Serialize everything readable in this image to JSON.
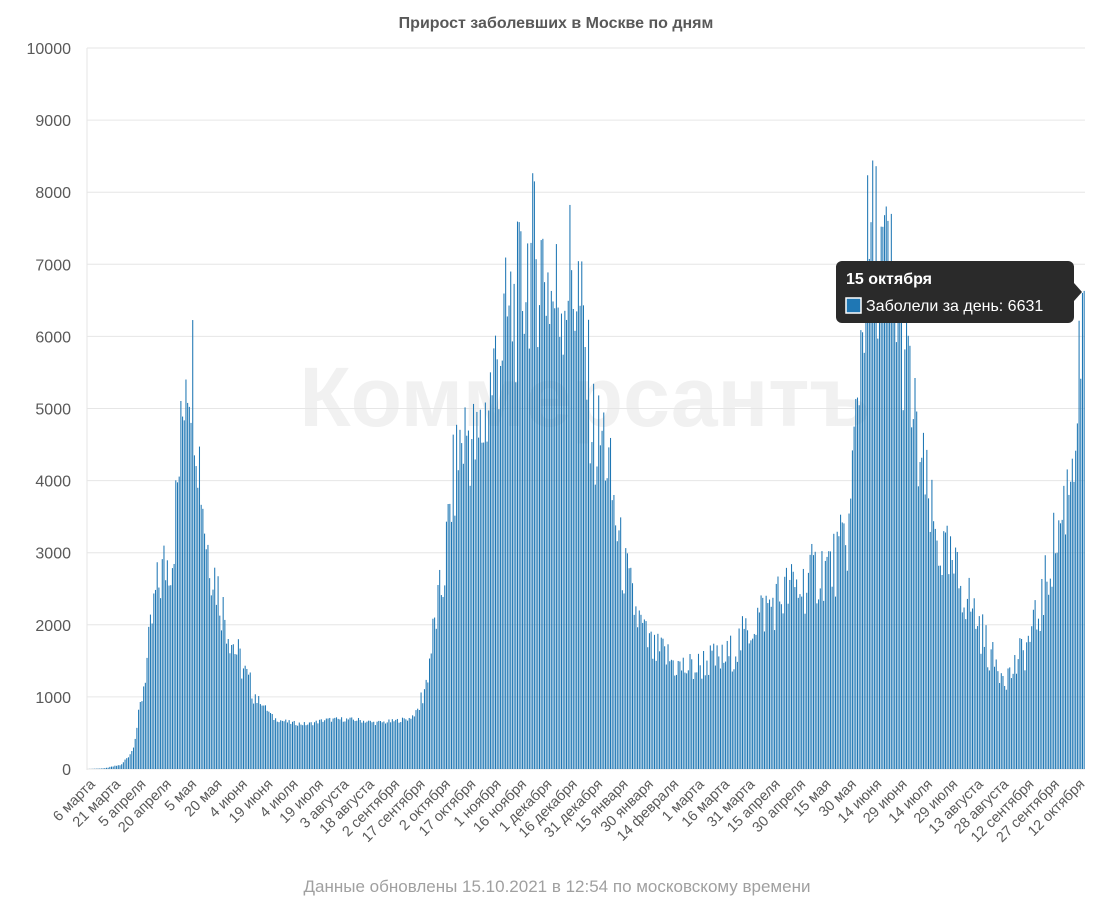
{
  "chart_data": {
    "type": "bar",
    "title": "Прирост заболевших в Москве по дням",
    "watermark": "Коммерсантъ",
    "footer": "Данные обновлены 15.10.2021 в 12:54 по московскому времени",
    "series": [
      {
        "name": "Заболели за день",
        "color": "#1f77b4"
      }
    ],
    "bar_color": "#1f77b4",
    "ylim": [
      0,
      10000
    ],
    "yticks": [
      0,
      1000,
      2000,
      3000,
      4000,
      5000,
      6000,
      7000,
      8000,
      9000,
      10000
    ],
    "grid": true,
    "x_tick_labels": [
      "6 марта",
      "21 марта",
      "5 апреля",
      "20 апреля",
      "5 мая",
      "20 мая",
      "4 июня",
      "19 июня",
      "4 июля",
      "19 июля",
      "3 августа",
      "18 августа",
      "2 сентября",
      "17 сентября",
      "2 октября",
      "17 октября",
      "1 ноября",
      "16 ноября",
      "1 декабря",
      "16 декабря",
      "31 декабря",
      "15 января",
      "30 января",
      "14 февраля",
      "1 марта",
      "16 марта",
      "31 марта",
      "15 апреля",
      "30 апреля",
      "15 мая",
      "30 мая",
      "14 июня",
      "29 июня",
      "14 июля",
      "29 июля",
      "13 августа",
      "28 августа",
      "12 сентября",
      "27 сентября",
      "12 октября"
    ],
    "start_date": "2020-03-06",
    "end_date": "2021-10-15",
    "trend_anchors": [
      [
        0,
        0
      ],
      [
        10,
        10
      ],
      [
        20,
        60
      ],
      [
        26,
        250
      ],
      [
        30,
        700
      ],
      [
        35,
        1500
      ],
      [
        40,
        2400
      ],
      [
        45,
        2800
      ],
      [
        50,
        3000
      ],
      [
        55,
        4500
      ],
      [
        58,
        5800
      ],
      [
        62,
        5600
      ],
      [
        65,
        4600
      ],
      [
        70,
        3200
      ],
      [
        75,
        2700
      ],
      [
        80,
        2200
      ],
      [
        85,
        1800
      ],
      [
        90,
        1500
      ],
      [
        95,
        1200
      ],
      [
        100,
        1000
      ],
      [
        110,
        700
      ],
      [
        120,
        640
      ],
      [
        130,
        620
      ],
      [
        140,
        680
      ],
      [
        150,
        690
      ],
      [
        160,
        680
      ],
      [
        170,
        640
      ],
      [
        180,
        660
      ],
      [
        190,
        700
      ],
      [
        195,
        800
      ],
      [
        200,
        1200
      ],
      [
        205,
        2000
      ],
      [
        210,
        2600
      ],
      [
        215,
        3800
      ],
      [
        220,
        4500
      ],
      [
        225,
        4700
      ],
      [
        230,
        4400
      ],
      [
        235,
        4900
      ],
      [
        240,
        5500
      ],
      [
        245,
        6000
      ],
      [
        250,
        6300
      ],
      [
        255,
        6500
      ],
      [
        260,
        7000
      ],
      [
        265,
        7100
      ],
      [
        270,
        7000
      ],
      [
        275,
        6500
      ],
      [
        280,
        6600
      ],
      [
        285,
        6900
      ],
      [
        290,
        6600
      ],
      [
        295,
        5500
      ],
      [
        300,
        4500
      ],
      [
        305,
        4600
      ],
      [
        310,
        3800
      ],
      [
        315,
        3000
      ],
      [
        320,
        2500
      ],
      [
        325,
        2100
      ],
      [
        330,
        1800
      ],
      [
        335,
        1600
      ],
      [
        340,
        1600
      ],
      [
        345,
        1500
      ],
      [
        350,
        1400
      ],
      [
        355,
        1400
      ],
      [
        360,
        1400
      ],
      [
        365,
        1500
      ],
      [
        370,
        1500
      ],
      [
        375,
        1500
      ],
      [
        380,
        1600
      ],
      [
        385,
        1750
      ],
      [
        390,
        1900
      ],
      [
        395,
        2100
      ],
      [
        400,
        2200
      ],
      [
        405,
        2300
      ],
      [
        410,
        2400
      ],
      [
        415,
        2500
      ],
      [
        420,
        2500
      ],
      [
        425,
        2600
      ],
      [
        430,
        2700
      ],
      [
        435,
        2800
      ],
      [
        440,
        2800
      ],
      [
        445,
        3000
      ],
      [
        450,
        3300
      ],
      [
        455,
        5200
      ],
      [
        460,
        7000
      ],
      [
        465,
        7400
      ],
      [
        470,
        7000
      ],
      [
        475,
        6800
      ],
      [
        480,
        6300
      ],
      [
        485,
        5500
      ],
      [
        490,
        4500
      ],
      [
        495,
        3900
      ],
      [
        500,
        3300
      ],
      [
        505,
        3000
      ],
      [
        510,
        2800
      ],
      [
        515,
        2600
      ],
      [
        520,
        2400
      ],
      [
        525,
        2100
      ],
      [
        530,
        1800
      ],
      [
        535,
        1500
      ],
      [
        540,
        1400
      ],
      [
        545,
        1300
      ],
      [
        550,
        1500
      ],
      [
        555,
        1700
      ],
      [
        560,
        2000
      ],
      [
        565,
        2400
      ],
      [
        570,
        3000
      ],
      [
        575,
        3400
      ],
      [
        580,
        4000
      ],
      [
        585,
        5000
      ],
      [
        588,
        6200
      ],
      [
        589,
        6631
      ]
    ],
    "highlight": {
      "date": "15 октября",
      "label": "Заболели за день",
      "value": 6631
    }
  }
}
